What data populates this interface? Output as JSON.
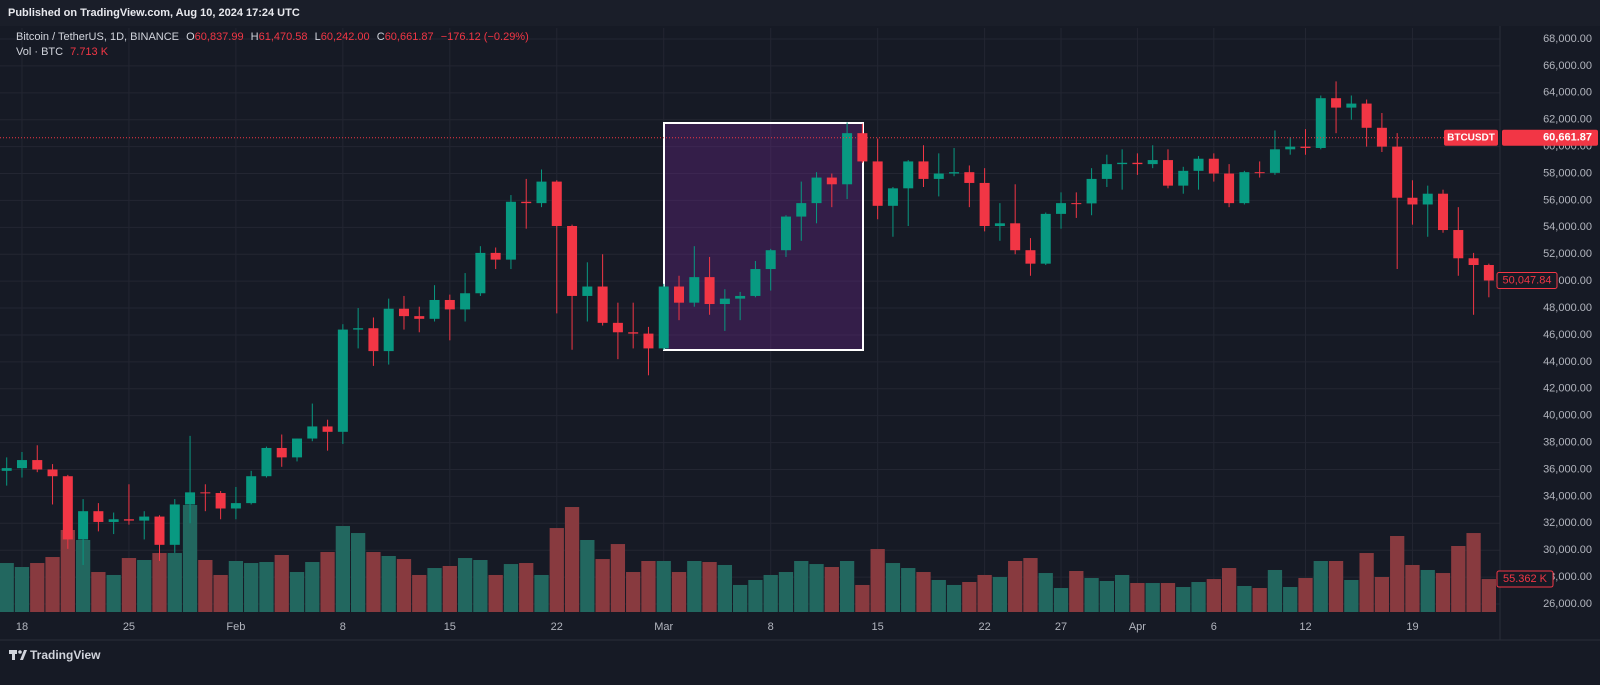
{
  "header": {
    "published": "Published on TradingView.com, Aug 10, 2024 17:24 UTC"
  },
  "chart_data": {
    "type": "candlestick",
    "symbol_line": "Bitcoin / TetherUS, 1D, BINANCE",
    "legend": {
      "o_label": "O",
      "open": "60,837.99",
      "h_label": "H",
      "high": "61,470.58",
      "l_label": "L",
      "low": "60,242.00",
      "c_label": "C",
      "close": "60,661.87",
      "change": "−176.12 (−0.29%)",
      "volume_label": "Vol · BTC",
      "volume": "7.713 K"
    },
    "categories": [
      null,
      "18",
      null,
      null,
      null,
      null,
      null,
      null,
      "25",
      null,
      null,
      null,
      null,
      null,
      null,
      "Feb",
      null,
      null,
      null,
      null,
      null,
      null,
      "8",
      null,
      null,
      null,
      null,
      null,
      null,
      "15",
      null,
      null,
      null,
      null,
      null,
      null,
      "22",
      null,
      null,
      null,
      null,
      null,
      null,
      "Mar",
      null,
      null,
      null,
      null,
      null,
      null,
      "8",
      null,
      null,
      null,
      null,
      null,
      null,
      "15",
      null,
      null,
      null,
      null,
      null,
      null,
      "22",
      null,
      null,
      null,
      null,
      "27",
      null,
      null,
      null,
      null,
      "Apr",
      null,
      null,
      null,
      null,
      "6",
      null,
      null,
      null,
      null,
      null,
      "12",
      null,
      null,
      null,
      null,
      null,
      null,
      "19",
      null,
      null,
      null,
      null,
      null
    ],
    "ohlc": {
      "open": [
        35900,
        36100,
        36700,
        36000,
        35500,
        30800,
        32900,
        32100,
        32300,
        32200,
        32500,
        30400,
        33400,
        34300,
        34250,
        33100,
        33500,
        35500,
        37600,
        36900,
        38300,
        39200,
        38800,
        46400,
        46500,
        44800,
        47950,
        47400,
        47200,
        48600,
        47900,
        49100,
        52100,
        51600,
        55900,
        55800,
        57400,
        54100,
        48900,
        49600,
        46900,
        46200,
        46100,
        45000,
        49600,
        48400,
        50300,
        48300,
        48700,
        48900,
        50900,
        52300,
        54800,
        55800,
        57700,
        57200,
        61000,
        58900,
        55600,
        56900,
        58900,
        57600,
        58000,
        58100,
        57300,
        54100,
        54300,
        52300,
        51300,
        55000,
        55800,
        55780,
        57600,
        58700,
        58800,
        58700,
        59000,
        57100,
        58200,
        59100,
        58000,
        55800,
        58100,
        58050,
        59800,
        60000,
        59900,
        63600,
        62900,
        63200,
        61400,
        60000,
        56200,
        55700,
        56500,
        53800,
        51700,
        51200
      ],
      "high": [
        36900,
        37300,
        37800,
        36400,
        35600,
        33800,
        33500,
        32800,
        34900,
        32900,
        32600,
        33800,
        38500,
        34900,
        34400,
        34700,
        35900,
        37700,
        38600,
        38300,
        40900,
        39700,
        46800,
        48000,
        47300,
        48700,
        48900,
        48100,
        49700,
        49000,
        50600,
        52600,
        52500,
        56400,
        57600,
        58300,
        57500,
        54200,
        51400,
        52000,
        48400,
        48400,
        46600,
        49800,
        50400,
        52600,
        51800,
        49400,
        49200,
        51500,
        52400,
        54900,
        57400,
        58100,
        58000,
        61800,
        61700,
        60600,
        57000,
        59000,
        60100,
        59500,
        59900,
        58600,
        58400,
        55800,
        57200,
        53200,
        55100,
        56600,
        56600,
        58400,
        59400,
        59800,
        59500,
        60100,
        59800,
        58500,
        59300,
        59500,
        58700,
        58200,
        58900,
        61200,
        60700,
        61300,
        63800,
        64850,
        63800,
        63500,
        62500,
        61000,
        57500,
        57100,
        56800,
        55500,
        52100,
        51300
      ],
      "low": [
        34800,
        35400,
        35800,
        33400,
        30100,
        28900,
        31400,
        31200,
        31900,
        30800,
        29200,
        29800,
        32000,
        32900,
        32300,
        32300,
        33400,
        35400,
        36200,
        36600,
        38100,
        37400,
        37900,
        45000,
        43700,
        43800,
        46400,
        46200,
        47000,
        45600,
        47000,
        48900,
        50900,
        50900,
        53900,
        55500,
        47600,
        44900,
        47000,
        46700,
        44200,
        45000,
        43000,
        44900,
        47100,
        48100,
        47500,
        46300,
        47100,
        48800,
        49300,
        51800,
        53000,
        54300,
        55500,
        56100,
        58800,
        54600,
        53300,
        54100,
        57000,
        56300,
        57800,
        55500,
        53700,
        53000,
        52000,
        50400,
        51200,
        53900,
        54700,
        54900,
        57000,
        56800,
        57900,
        58400,
        56900,
        56500,
        56800,
        57400,
        55500,
        55700,
        57700,
        57900,
        59400,
        59400,
        59800,
        61000,
        62000,
        60000,
        59600,
        50900,
        54200,
        53300,
        53600,
        50400,
        47500,
        48800
      ],
      "close": [
        36100,
        36700,
        36000,
        35500,
        30800,
        32900,
        32100,
        32300,
        32200,
        32500,
        30400,
        33400,
        34300,
        34250,
        33100,
        33500,
        35500,
        37600,
        36900,
        38300,
        39200,
        38800,
        46400,
        46500,
        44800,
        47950,
        47400,
        47200,
        48600,
        47900,
        49100,
        52100,
        51600,
        55900,
        55800,
        57400,
        54100,
        48900,
        49600,
        46900,
        46200,
        46100,
        45000,
        49600,
        48400,
        50300,
        48300,
        48700,
        48900,
        50900,
        52300,
        54800,
        55800,
        57700,
        57200,
        61000,
        58900,
        55600,
        56900,
        58900,
        57600,
        58000,
        58100,
        57300,
        54100,
        54300,
        52300,
        51300,
        55000,
        55800,
        55780,
        57600,
        58700,
        58800,
        58700,
        59000,
        57100,
        58200,
        59100,
        58000,
        55800,
        58100,
        58050,
        59800,
        60000,
        59900,
        63600,
        62900,
        63200,
        61400,
        60000,
        56200,
        55700,
        56500,
        53800,
        51700,
        51200,
        50047.84
      ]
    },
    "volume": [
      82300,
      75600,
      82300,
      92400,
      137800,
      121000,
      67200,
      62200,
      90700,
      87400,
      99100,
      99100,
      179800,
      87400,
      62200,
      85700,
      82300,
      84000,
      95800,
      67200,
      84000,
      100800,
      144500,
      132700,
      100800,
      94100,
      89000,
      62200,
      73900,
      77300,
      90700,
      87400,
      62200,
      80600,
      82300,
      62200,
      141100,
      176400,
      121000,
      89000,
      114200,
      67200,
      85700,
      85700,
      67200,
      85700,
      84000,
      79000,
      45400,
      53800,
      62200,
      67200,
      85700,
      80600,
      75600,
      85700,
      45400,
      105800,
      82300,
      73900,
      67200,
      53800,
      45400,
      50400,
      62200,
      58800,
      85700,
      90700,
      65500,
      40300,
      68900,
      57100,
      52100,
      62200,
      48700,
      48700,
      48700,
      42000,
      50400,
      55400,
      73900,
      43700,
      40300,
      70600,
      42000,
      57100,
      85700,
      85700,
      53800,
      99100,
      58800,
      127700,
      79000,
      70600,
      65500,
      110900,
      132700,
      55362
    ],
    "ylim": [
      25406,
      68818
    ],
    "yticks": [
      {
        "value": 26000,
        "label": "26,000.00"
      },
      {
        "value": 28000,
        "label": "28,000.00"
      },
      {
        "value": 30000,
        "label": "30,000.00"
      },
      {
        "value": 32000,
        "label": "32,000.00"
      },
      {
        "value": 34000,
        "label": "34,000.00"
      },
      {
        "value": 36000,
        "label": "36,000.00"
      },
      {
        "value": 38000,
        "label": "38,000.00"
      },
      {
        "value": 40000,
        "label": "40,000.00"
      },
      {
        "value": 42000,
        "label": "42,000.00"
      },
      {
        "value": 44000,
        "label": "44,000.00"
      },
      {
        "value": 46000,
        "label": "46,000.00"
      },
      {
        "value": 48000,
        "label": "48,000.00"
      },
      {
        "value": 50000,
        "label": "50,000.00"
      },
      {
        "value": 52000,
        "label": "52,000.00"
      },
      {
        "value": 54000,
        "label": "54,000.00"
      },
      {
        "value": 56000,
        "label": "56,000.00"
      },
      {
        "value": 58000,
        "label": "58,000.00"
      },
      {
        "value": 60000,
        "label": "60,000.00"
      },
      {
        "value": 62000,
        "label": "62,000.00"
      },
      {
        "value": 64000,
        "label": "64,000.00"
      },
      {
        "value": 66000,
        "label": "66,000.00"
      },
      {
        "value": 68000,
        "label": "68,000.00"
      }
    ],
    "grid": true,
    "up_color": "#089981",
    "down_color": "#f23645",
    "volume_up_color": "#22675f",
    "volume_down_color": "#883a3f",
    "current_price": {
      "symbol": "BTCUSDT",
      "value": 60661.87,
      "label": "60,661.87"
    },
    "last_close_label": "50,047.84",
    "last_volume_label": "55.362 K"
  },
  "footer": {
    "brand": "TradingView"
  }
}
